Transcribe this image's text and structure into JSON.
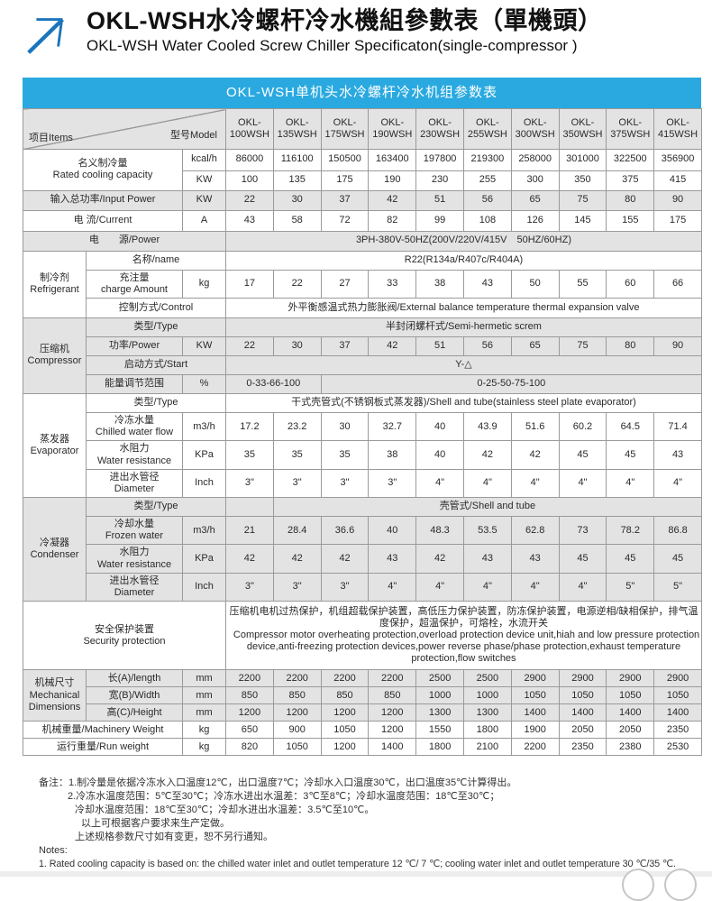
{
  "header": {
    "title_cn": "OKL-WSH水冷螺杆冷水機組參數表（單機頭）",
    "title_en": "OKL-WSH Water Cooled Screw Chiller Specificaton(single-compressor )"
  },
  "colors": {
    "accent_cyan": "#29a9e0",
    "row_gray": "#e3e3e3",
    "logo_blue": "#1b75bc",
    "border_gray": "#9a9a9a"
  },
  "table": {
    "caption": "OKL-WSH单机头水冷螺杆冷水机组参数表",
    "corner": {
      "items": "项目Items",
      "model": "型号Model"
    },
    "models": [
      "OKL-\n100WSH",
      "OKL-\n135WSH",
      "OKL-\n175WSH",
      "OKL-\n190WSH",
      "OKL-\n230WSH",
      "OKL-\n255WSH",
      "OKL-\n300WSH",
      "OKL-\n350WSH",
      "OKL-\n375WSH",
      "OKL-\n415WSH"
    ],
    "rows": [
      {
        "h": 24,
        "cells": [
          {
            "t": "名义制冷量\nRated cooling capacity",
            "cs": 2,
            "rs": 2,
            "cls": "lbl"
          },
          {
            "t": "kcal/h",
            "cls": "unit"
          },
          {
            "t": "86000"
          },
          {
            "t": "116100"
          },
          {
            "t": "150500"
          },
          {
            "t": "163400"
          },
          {
            "t": "197800"
          },
          {
            "t": "219300"
          },
          {
            "t": "258000"
          },
          {
            "t": "301000"
          },
          {
            "t": "322500"
          },
          {
            "t": "356900"
          }
        ]
      },
      {
        "h": 22,
        "cells": [
          {
            "t": "KW",
            "cls": "unit"
          },
          {
            "t": "100"
          },
          {
            "t": "135"
          },
          {
            "t": "175"
          },
          {
            "t": "190"
          },
          {
            "t": "230"
          },
          {
            "t": "255"
          },
          {
            "t": "300"
          },
          {
            "t": "350"
          },
          {
            "t": "375"
          },
          {
            "t": "415"
          }
        ]
      },
      {
        "h": 22,
        "bg": "g",
        "cells": [
          {
            "t": "输入总功率/Input Power",
            "cs": 2,
            "cls": "lbl"
          },
          {
            "t": "KW",
            "cls": "unit"
          },
          {
            "t": "22"
          },
          {
            "t": "30"
          },
          {
            "t": "37"
          },
          {
            "t": "42"
          },
          {
            "t": "51"
          },
          {
            "t": "56"
          },
          {
            "t": "65"
          },
          {
            "t": "75"
          },
          {
            "t": "80"
          },
          {
            "t": "90"
          }
        ]
      },
      {
        "h": 23,
        "cells": [
          {
            "t": "电 流/Current",
            "cs": 2,
            "cls": "lbl"
          },
          {
            "t": "A",
            "cls": "unit"
          },
          {
            "t": "43"
          },
          {
            "t": "58"
          },
          {
            "t": "72"
          },
          {
            "t": "82"
          },
          {
            "t": "99"
          },
          {
            "t": "108"
          },
          {
            "t": "126"
          },
          {
            "t": "145"
          },
          {
            "t": "155"
          },
          {
            "t": "175"
          }
        ]
      },
      {
        "h": 22,
        "bg": "g",
        "cells": [
          {
            "t": "电　　源/Power",
            "cs": 3,
            "cls": "lbl"
          },
          {
            "t": "3PH-380V-50HZ(200V/220V/415V　50HZ/60HZ)",
            "cs": 10
          }
        ]
      },
      {
        "h": 21,
        "cells": [
          {
            "t": "制冷剂\nRefrigerant",
            "rs": 3,
            "cls": "grp"
          },
          {
            "t": "名称/name",
            "cs": 2,
            "cls": "lbl"
          },
          {
            "t": "R22(R134a/R407c/R404A)",
            "cs": 10
          }
        ]
      },
      {
        "h": 30,
        "cells": [
          {
            "t": "充注量\ncharge Amount",
            "cls": "lbl"
          },
          {
            "t": "kg",
            "cls": "unit"
          },
          {
            "t": "17"
          },
          {
            "t": "22"
          },
          {
            "t": "27"
          },
          {
            "t": "33"
          },
          {
            "t": "38"
          },
          {
            "t": "43"
          },
          {
            "t": "50"
          },
          {
            "t": "55"
          },
          {
            "t": "60"
          },
          {
            "t": "66"
          }
        ]
      },
      {
        "h": 22,
        "cells": [
          {
            "t": "控制方式/Control",
            "cs": 2,
            "cls": "lbl"
          },
          {
            "t": "外平衡感温式热力膨胀阀/External balance temperature thermal expansion valve",
            "cs": 10
          }
        ]
      },
      {
        "h": 21,
        "bg": "g",
        "cells": [
          {
            "t": "压缩机\nCompressor",
            "rs": 4,
            "cls": "grp"
          },
          {
            "t": "类型/Type",
            "cs": 2,
            "cls": "lbl"
          },
          {
            "t": "半封闭螺杆式/Semi-hermetic screm",
            "cs": 10
          }
        ]
      },
      {
        "h": 21,
        "bg": "g",
        "cells": [
          {
            "t": "功率/Power",
            "cls": "lbl"
          },
          {
            "t": "KW",
            "cls": "unit"
          },
          {
            "t": "22"
          },
          {
            "t": "30"
          },
          {
            "t": "37"
          },
          {
            "t": "42"
          },
          {
            "t": "51"
          },
          {
            "t": "56"
          },
          {
            "t": "65"
          },
          {
            "t": "75"
          },
          {
            "t": "80"
          },
          {
            "t": "90"
          }
        ]
      },
      {
        "h": 21,
        "bg": "g",
        "cells": [
          {
            "t": "启动方式/Start",
            "cs": 2,
            "cls": "lbl"
          },
          {
            "t": "Y-△",
            "cs": 10
          }
        ]
      },
      {
        "h": 21,
        "bg": "g",
        "cells": [
          {
            "t": "能量调节范围",
            "cls": "lbl"
          },
          {
            "t": "%",
            "cls": "unit"
          },
          {
            "t": "0-33-66-100",
            "cs": 2
          },
          {
            "t": "0-25-50-75-100",
            "cs": 8
          }
        ]
      },
      {
        "h": 21,
        "cells": [
          {
            "t": "蒸发器\nEvaporator",
            "rs": 4,
            "cls": "grp"
          },
          {
            "t": "类型/Type",
            "cs": 2,
            "cls": "lbl"
          },
          {
            "t": "干式壳管式(不锈钢板式蒸发器)/Shell and tube(stainless steel plate evaporator)",
            "cs": 10
          }
        ]
      },
      {
        "h": 30,
        "cells": [
          {
            "t": "冷冻水量\nChilled water flow",
            "cls": "lbl"
          },
          {
            "t": "m3/h",
            "cls": "unit"
          },
          {
            "t": "17.2"
          },
          {
            "t": "23.2"
          },
          {
            "t": "30"
          },
          {
            "t": "32.7"
          },
          {
            "t": "40"
          },
          {
            "t": "43.9"
          },
          {
            "t": "51.6"
          },
          {
            "t": "60.2"
          },
          {
            "t": "64.5"
          },
          {
            "t": "71.4"
          }
        ]
      },
      {
        "h": 30,
        "cells": [
          {
            "t": "水阻力\nWater resistance",
            "cls": "lbl"
          },
          {
            "t": "KPa",
            "cls": "unit"
          },
          {
            "t": "35"
          },
          {
            "t": "35"
          },
          {
            "t": "35"
          },
          {
            "t": "38"
          },
          {
            "t": "40"
          },
          {
            "t": "42"
          },
          {
            "t": "42"
          },
          {
            "t": "45"
          },
          {
            "t": "45"
          },
          {
            "t": "43"
          }
        ]
      },
      {
        "h": 30,
        "cells": [
          {
            "t": "进出水管径\nDiameter",
            "cls": "lbl"
          },
          {
            "t": "Inch",
            "cls": "unit"
          },
          {
            "t": "3\""
          },
          {
            "t": "3\""
          },
          {
            "t": "3\""
          },
          {
            "t": "3\""
          },
          {
            "t": "4\""
          },
          {
            "t": "4\""
          },
          {
            "t": "4\""
          },
          {
            "t": "4\""
          },
          {
            "t": "4\""
          },
          {
            "t": "4\""
          }
        ]
      },
      {
        "h": 21,
        "bg": "g",
        "cells": [
          {
            "t": "冷凝器\nCondenser",
            "rs": 4,
            "cls": "grp"
          },
          {
            "t": "类型/Type",
            "cs": 2,
            "cls": "lbl"
          },
          {
            "t": ""
          },
          {
            "t": "壳管式/Shell and tube",
            "cs": 9
          }
        ]
      },
      {
        "h": 30,
        "bg": "g",
        "cells": [
          {
            "t": "冷却水量\nFrozen water",
            "cls": "lbl"
          },
          {
            "t": "m3/h",
            "cls": "unit"
          },
          {
            "t": "21"
          },
          {
            "t": "28.4"
          },
          {
            "t": "36.6"
          },
          {
            "t": "40"
          },
          {
            "t": "48.3"
          },
          {
            "t": "53.5"
          },
          {
            "t": "62.8"
          },
          {
            "t": "73"
          },
          {
            "t": "78.2"
          },
          {
            "t": "86.8"
          }
        ]
      },
      {
        "h": 30,
        "bg": "g",
        "cells": [
          {
            "t": "水阻力\nWater resistance",
            "cls": "lbl"
          },
          {
            "t": "KPa",
            "cls": "unit"
          },
          {
            "t": "42"
          },
          {
            "t": "42"
          },
          {
            "t": "42"
          },
          {
            "t": "43"
          },
          {
            "t": "42"
          },
          {
            "t": "43"
          },
          {
            "t": "43"
          },
          {
            "t": "45"
          },
          {
            "t": "45"
          },
          {
            "t": "45"
          }
        ]
      },
      {
        "h": 30,
        "bg": "g",
        "cells": [
          {
            "t": "进出水管径\nDiameter",
            "cls": "lbl"
          },
          {
            "t": "Inch",
            "cls": "unit"
          },
          {
            "t": "3\""
          },
          {
            "t": "3\""
          },
          {
            "t": "3\""
          },
          {
            "t": "4\""
          },
          {
            "t": "4\""
          },
          {
            "t": "4\""
          },
          {
            "t": "4\""
          },
          {
            "t": "4\""
          },
          {
            "t": "5\""
          },
          {
            "t": "5\""
          }
        ]
      },
      {
        "h": 76,
        "cells": [
          {
            "t": "安全保护装置\nSecurity protection",
            "cs": 3,
            "cls": "lbl"
          },
          {
            "t": "压缩机电机过热保护，机组超载保护装置，高低压力保护装置，防冻保护装置，电源逆相/缺相保护，排气温度保护，超温保护，可熔栓，水流开关\n  Compressor motor overheating protection,overload protection device unit,hiah and low pressure protection device,anti-freezing protection devices,power reverse phase/phase protection,exhaust temperature protection,flow switches",
            "cs": 10,
            "cls": "vleft"
          }
        ]
      },
      {
        "h": 19,
        "bg": "g",
        "cells": [
          {
            "t": "机械尺寸\nMechanical\nDimensions",
            "rs": 3,
            "cls": "grp"
          },
          {
            "t": "长(A)/length",
            "cls": "lbl"
          },
          {
            "t": "mm",
            "cls": "unit"
          },
          {
            "t": "2200"
          },
          {
            "t": "2200"
          },
          {
            "t": "2200"
          },
          {
            "t": "2200"
          },
          {
            "t": "2500"
          },
          {
            "t": "2500"
          },
          {
            "t": "2900"
          },
          {
            "t": "2900"
          },
          {
            "t": "2900"
          },
          {
            "t": "2900"
          }
        ]
      },
      {
        "h": 19,
        "bg": "g",
        "cells": [
          {
            "t": "宽(B)/Width",
            "cls": "lbl"
          },
          {
            "t": "mm",
            "cls": "unit"
          },
          {
            "t": "850"
          },
          {
            "t": "850"
          },
          {
            "t": "850"
          },
          {
            "t": "850"
          },
          {
            "t": "1000"
          },
          {
            "t": "1000"
          },
          {
            "t": "1050"
          },
          {
            "t": "1050"
          },
          {
            "t": "1050"
          },
          {
            "t": "1050"
          }
        ]
      },
      {
        "h": 19,
        "bg": "g",
        "cells": [
          {
            "t": "高(C)/Height",
            "cls": "lbl"
          },
          {
            "t": "mm",
            "cls": "unit"
          },
          {
            "t": "1200"
          },
          {
            "t": "1200"
          },
          {
            "t": "1200"
          },
          {
            "t": "1200"
          },
          {
            "t": "1300"
          },
          {
            "t": "1300"
          },
          {
            "t": "1400"
          },
          {
            "t": "1400"
          },
          {
            "t": "1400"
          },
          {
            "t": "1400"
          }
        ]
      },
      {
        "h": 19,
        "cells": [
          {
            "t": "机械重量/Machinery Weight",
            "cs": 2,
            "cls": "lbl"
          },
          {
            "t": "kg",
            "cls": "unit"
          },
          {
            "t": "650"
          },
          {
            "t": "900"
          },
          {
            "t": "1050"
          },
          {
            "t": "1200"
          },
          {
            "t": "1550"
          },
          {
            "t": "1800"
          },
          {
            "t": "1900"
          },
          {
            "t": "2050"
          },
          {
            "t": "2050"
          },
          {
            "t": "2350"
          }
        ]
      },
      {
        "h": 19,
        "cells": [
          {
            "t": "运行重量/Run weight",
            "cs": 2,
            "cls": "lbl"
          },
          {
            "t": "kg",
            "cls": "unit"
          },
          {
            "t": "820"
          },
          {
            "t": "1050"
          },
          {
            "t": "1200"
          },
          {
            "t": "1400"
          },
          {
            "t": "1800"
          },
          {
            "t": "2100"
          },
          {
            "t": "2200"
          },
          {
            "t": "2350"
          },
          {
            "t": "2380"
          },
          {
            "t": "2530"
          }
        ]
      }
    ]
  },
  "notes": {
    "l1": "备注：1.制冷量是依据冷冻水入口温度12℃，出口温度7℃；冷却水入口温度30℃，出口温度35℃计算得出。",
    "l2": "2.冷冻水温度范围：5℃至30℃；冷冻水进出水温差：3℃至8℃；冷却水温度范围：18℃至30℃；",
    "l3": "冷却水温度范围：18℃至30℃；冷却水进出水温差：3.5℃至10℃。",
    "l4": "以上可根据客户要求来生产定做。",
    "l5": "上述规格参数尺寸如有变更，恕不另行通知。",
    "l6": "Notes:",
    "l7": "1. Rated cooling capacity is based on: the chilled water inlet and outlet temperature 12 ℃/ 7 ℃; cooling water inlet and outlet temperature 30 ℃/35 ℃."
  }
}
